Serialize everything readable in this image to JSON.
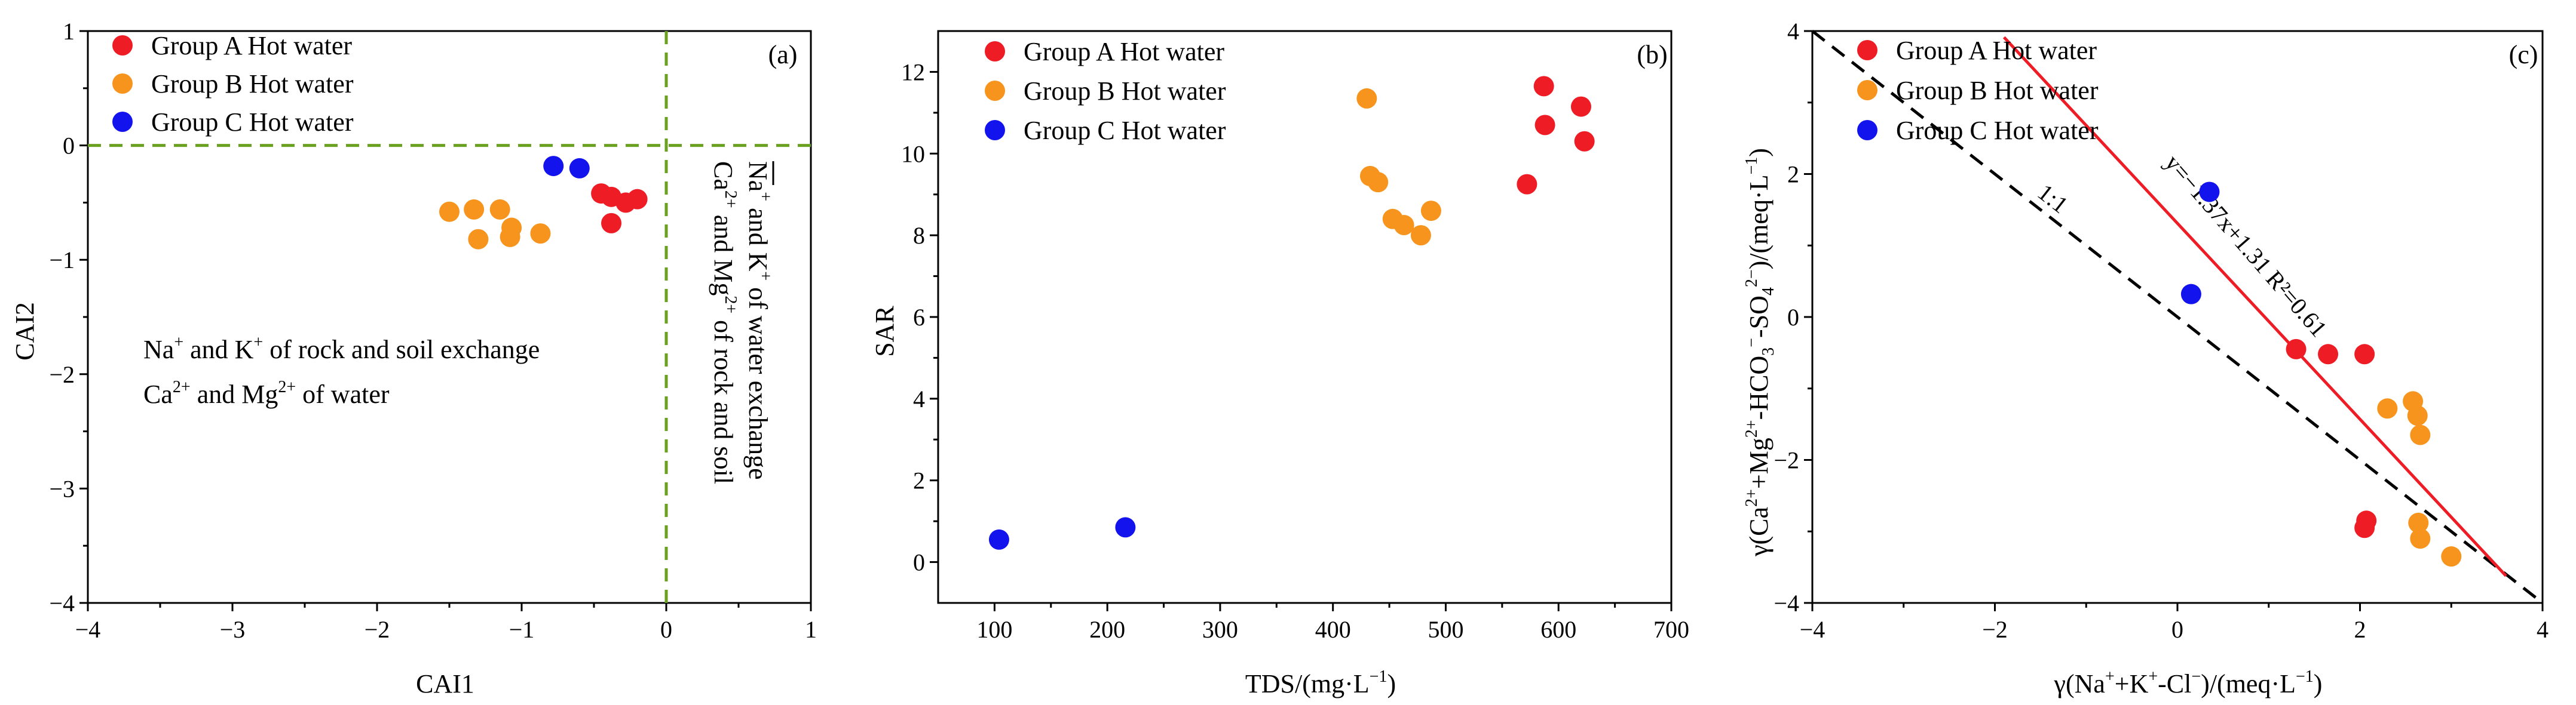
{
  "colors": {
    "group_a": "#ee1c25",
    "group_b": "#f7941d",
    "group_c": "#1313ee",
    "ref_line_a": "#6aa121",
    "fit_line": "#ee1c25",
    "one_to_one": "#000000"
  },
  "chart_data": [
    {
      "id": "a",
      "type": "scatter",
      "panel_label": "(a)",
      "xlabel": "CAI1",
      "ylabel": "CAI2",
      "xlim": [
        -4,
        1
      ],
      "ylim": [
        -4,
        1
      ],
      "xticks": [
        -4,
        -3,
        -2,
        -1,
        0,
        1
      ],
      "yticks": [
        -4,
        -3,
        -2,
        -1,
        0,
        1
      ],
      "xtick_labels": [
        "−4",
        "−3",
        "−2",
        "−1",
        "0",
        "1"
      ],
      "ytick_labels": [
        "−4",
        "−3",
        "−2",
        "−1",
        "0",
        "1"
      ],
      "legend": {
        "position": "top-left",
        "entries": [
          "Group A Hot water",
          "Group B Hot water",
          "Group C Hot water"
        ]
      },
      "reference_lines": [
        {
          "orientation": "horizontal",
          "value": 0,
          "style": "dashed"
        },
        {
          "orientation": "vertical",
          "value": 0,
          "style": "dashed"
        }
      ],
      "annotations": {
        "left_line1": {
          "a": "Na",
          "a_sup": "+",
          "b": " and K",
          "b_sup": "+",
          "c": " of  rock and soil exchange"
        },
        "left_line2": {
          "a": "Ca",
          "a_sup": "2+",
          "b": " and Mg",
          "b_sup": "2+",
          "c": " of  water"
        },
        "right_line1": {
          "a": "Na",
          "a_sup": "+",
          "b": " and K",
          "b_sup": "+",
          "c": " of water exchange"
        },
        "right_line2": {
          "a": "Ca",
          "a_sup": "2+",
          "b": " and Mg",
          "b_sup": "2+",
          "c": " of rock and soil"
        }
      },
      "series": [
        {
          "name": "Group A Hot water",
          "color_key": "group_a",
          "x": [
            -0.45,
            -0.38,
            -0.28,
            -0.2,
            -0.38
          ],
          "y": [
            -0.42,
            -0.45,
            -0.5,
            -0.47,
            -0.68
          ]
        },
        {
          "name": "Group B Hot water",
          "color_key": "group_b",
          "x": [
            -1.5,
            -1.33,
            -1.15,
            -1.07,
            -1.08,
            -0.87,
            -1.3
          ],
          "y": [
            -0.58,
            -0.56,
            -0.56,
            -0.72,
            -0.8,
            -0.77,
            -0.82
          ]
        },
        {
          "name": "Group C Hot water",
          "color_key": "group_c",
          "x": [
            -0.78,
            -0.6
          ],
          "y": [
            -0.18,
            -0.2
          ]
        }
      ]
    },
    {
      "id": "b",
      "type": "scatter",
      "panel_label": "(b)",
      "xlabel": "TDS/(mg·L",
      "xlabel_sup": "−1",
      "xlabel_end": ")",
      "ylabel": "SAR",
      "xlim": [
        50,
        700
      ],
      "ylim": [
        -1,
        13
      ],
      "xticks": [
        100,
        200,
        300,
        400,
        500,
        600,
        700
      ],
      "yticks": [
        0,
        2,
        4,
        6,
        8,
        10,
        12
      ],
      "xtick_labels": [
        "100",
        "200",
        "300",
        "400",
        "500",
        "600",
        "700"
      ],
      "ytick_labels": [
        "0",
        "2",
        "4",
        "6",
        "8",
        "10",
        "12"
      ],
      "legend": {
        "position": "top-left",
        "entries": [
          "Group A Hot water",
          "Group B Hot water",
          "Group C Hot water"
        ]
      },
      "series": [
        {
          "name": "Group A Hot water",
          "color_key": "group_a",
          "x": [
            587,
            620,
            588,
            623,
            572
          ],
          "y": [
            11.65,
            11.15,
            10.7,
            10.3,
            9.25
          ]
        },
        {
          "name": "Group B Hot water",
          "color_key": "group_b",
          "x": [
            430,
            433,
            440,
            453,
            463,
            478,
            487
          ],
          "y": [
            11.35,
            9.45,
            9.3,
            8.4,
            8.25,
            8.0,
            8.6
          ]
        },
        {
          "name": "Group C Hot water",
          "color_key": "group_c",
          "x": [
            104,
            216
          ],
          "y": [
            0.55,
            0.85
          ]
        }
      ]
    },
    {
      "id": "c",
      "type": "scatter",
      "panel_label": "(c)",
      "xlabel_parts": {
        "a": "γ(Na",
        "a_sup": "+",
        "b": "+K",
        "b_sup": "+",
        "c": "-Cl",
        "c_sup": "−",
        "d": ")/(meq·L",
        "d_sup": "−1",
        "e": ")"
      },
      "ylabel_parts": {
        "a": "γ(Ca",
        "a_sup": "2+",
        "b": "+Mg",
        "b_sup": "2+",
        "c": "-HCO",
        "c_sub": "3",
        "c_sup": "−",
        "d": "-SO",
        "d_sub": "4",
        "d_sup": "2−",
        "e": ")/(meq·L",
        "e_sup": "−1",
        "f": ")"
      },
      "xlim": [
        -4,
        4
      ],
      "ylim": [
        -4,
        4
      ],
      "xticks": [
        -4,
        -2,
        0,
        2,
        4
      ],
      "yticks": [
        -4,
        -2,
        0,
        2,
        4
      ],
      "xtick_labels": [
        "−4",
        "−2",
        "0",
        "2",
        "4"
      ],
      "ytick_labels": [
        "−4",
        "−2",
        "0",
        "2",
        "4"
      ],
      "legend": {
        "position": "top-left",
        "entries": [
          "Group A Hot water",
          "Group B Hot water",
          "Group C Hot water"
        ]
      },
      "reference_lines": [
        {
          "name": "1:1",
          "slope": -1,
          "intercept": 0,
          "style": "dashed",
          "label": "1:1"
        },
        {
          "name": "fit",
          "slope": -1.37,
          "intercept": 1.31,
          "style": "solid",
          "label": "y=−1.37x+1.31  R²=0.61",
          "x_range": [
            -1.9,
            3.6
          ]
        }
      ],
      "series": [
        {
          "name": "Group A Hot water",
          "color_key": "group_a",
          "x": [
            1.3,
            1.65,
            2.05,
            2.07,
            2.05
          ],
          "y": [
            -0.45,
            -0.52,
            -0.52,
            -2.85,
            -2.95
          ]
        },
        {
          "name": "Group B Hot water",
          "color_key": "group_b",
          "x": [
            2.3,
            2.58,
            2.63,
            2.66,
            2.64,
            2.66,
            3.0
          ],
          "y": [
            -1.28,
            -1.18,
            -1.38,
            -1.65,
            -2.88,
            -3.1,
            -3.35
          ]
        },
        {
          "name": "Group C Hot water",
          "color_key": "group_c",
          "x": [
            0.35,
            0.15
          ],
          "y": [
            1.75,
            0.32
          ]
        }
      ]
    }
  ]
}
